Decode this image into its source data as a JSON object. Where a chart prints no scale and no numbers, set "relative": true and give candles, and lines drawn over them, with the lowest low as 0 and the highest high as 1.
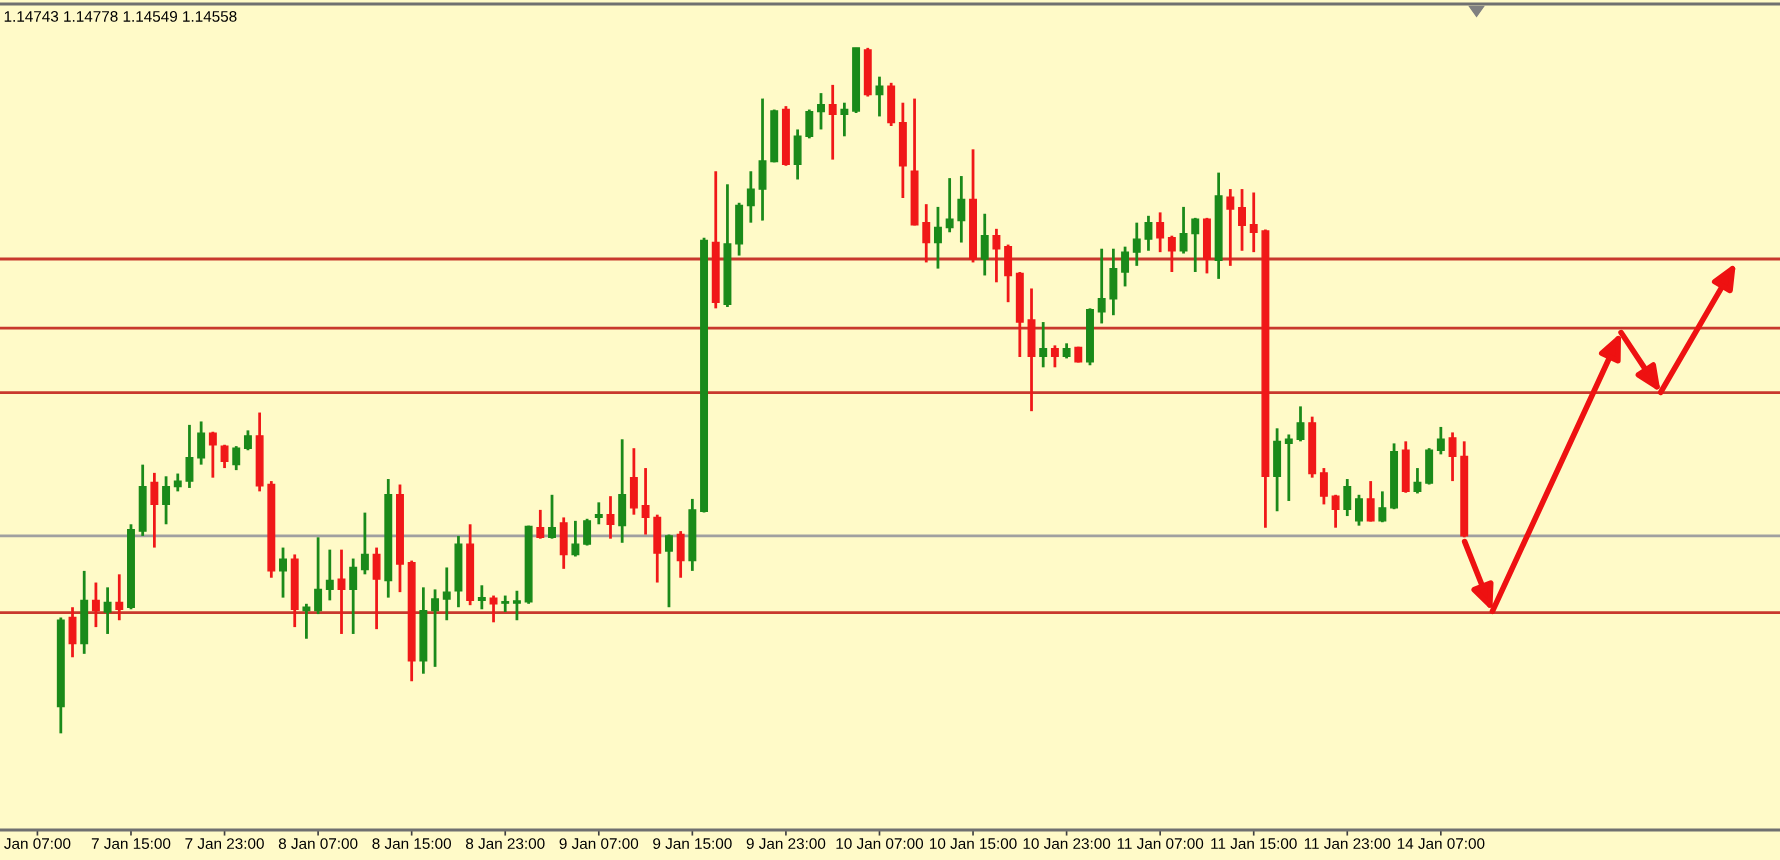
{
  "chart_data": {
    "type": "candlestick",
    "title": "1.14743 1.14778 1.14549 1.14558",
    "relative": true,
    "categories": [
      "Jan 07:00",
      null,
      null,
      null,
      null,
      null,
      null,
      null,
      "7 Jan 15:00",
      null,
      null,
      null,
      null,
      null,
      null,
      null,
      "7 Jan 23:00",
      null,
      null,
      null,
      null,
      null,
      null,
      null,
      "8 Jan 07:00",
      null,
      null,
      null,
      null,
      null,
      null,
      null,
      "8 Jan 15:00",
      null,
      null,
      null,
      null,
      null,
      null,
      null,
      "8 Jan 23:00",
      null,
      null,
      null,
      null,
      null,
      null,
      null,
      "9 Jan 07:00",
      null,
      null,
      null,
      null,
      null,
      null,
      null,
      "9 Jan 15:00",
      null,
      null,
      null,
      null,
      null,
      null,
      null,
      "9 Jan 23:00",
      null,
      null,
      null,
      null,
      null,
      null,
      null,
      "10 Jan 07:00",
      null,
      null,
      null,
      null,
      null,
      null,
      null,
      "10 Jan 15:00",
      null,
      null,
      null,
      null,
      null,
      null,
      null,
      "10 Jan 23:00",
      null,
      null,
      null,
      null,
      null,
      null,
      null,
      "11 Jan 07:00",
      null,
      null,
      null,
      null,
      null,
      null,
      null,
      "11 Jan 15:00",
      null,
      null,
      null,
      null,
      null,
      null,
      null,
      "11 Jan 23:00",
      null,
      null,
      null,
      null,
      null,
      null,
      null,
      "14 Jan 07:00",
      null,
      null
    ],
    "ohlc": [
      null,
      null,
      [
        0.039,
        0.169,
        0,
        0.165
      ],
      [
        0.169,
        0.184,
        0.111,
        0.131
      ],
      [
        0.131,
        0.237,
        0.116,
        0.194
      ],
      [
        0.194,
        0.22,
        0.155,
        0.179
      ],
      [
        0.177,
        0.213,
        0.145,
        0.191
      ],
      [
        0.191,
        0.232,
        0.165,
        0.181
      ],
      [
        0.184,
        0.305,
        0.181,
        0.297
      ],
      [
        0.295,
        0.392,
        0.288,
        0.36
      ],
      [
        0.366,
        0.38,
        0.271,
        0.334
      ],
      [
        0.334,
        0.375,
        0.305,
        0.36
      ],
      [
        0.36,
        0.379,
        0.353,
        0.368
      ],
      [
        0.368,
        0.45,
        0.358,
        0.402
      ],
      [
        0.402,
        0.455,
        0.392,
        0.438
      ],
      [
        0.438,
        0.44,
        0.373,
        0.421
      ],
      [
        0.419,
        0.421,
        0.387,
        0.397
      ],
      [
        0.392,
        0.419,
        0.384,
        0.416
      ],
      [
        0.416,
        0.442,
        0.413,
        0.434
      ],
      [
        0.434,
        0.468,
        0.353,
        0.361
      ],
      [
        0.363,
        0.368,
        0.227,
        0.237
      ],
      [
        0.237,
        0.271,
        0.198,
        0.254
      ],
      [
        0.254,
        0.261,
        0.155,
        0.181
      ],
      [
        0.179,
        0.189,
        0.138,
        0.184
      ],
      [
        0.179,
        0.286,
        0.174,
        0.21
      ],
      [
        0.21,
        0.268,
        0.194,
        0.223
      ],
      [
        0.225,
        0.268,
        0.145,
        0.21
      ],
      [
        0.21,
        0.255,
        0.145,
        0.242
      ],
      [
        0.239,
        0.322,
        0.232,
        0.261
      ],
      [
        0.261,
        0.271,
        0.152,
        0.225
      ],
      [
        0.223,
        0.371,
        0.198,
        0.348
      ],
      [
        0.348,
        0.363,
        0.206,
        0.247
      ],
      [
        0.249,
        0.252,
        0.076,
        0.106
      ],
      [
        0.106,
        0.213,
        0.087,
        0.179
      ],
      [
        0.179,
        0.21,
        0.097,
        0.196
      ],
      [
        0.196,
        0.242,
        0.165,
        0.206
      ],
      [
        0.208,
        0.288,
        0.184,
        0.276
      ],
      [
        0.276,
        0.305,
        0.187,
        0.194
      ],
      [
        0.194,
        0.216,
        0.181,
        0.198
      ],
      [
        0.197,
        0.201,
        0.162,
        0.189
      ],
      [
        0.19,
        0.201,
        0.177,
        0.192
      ],
      [
        0.19,
        0.208,
        0.165,
        0.193
      ],
      [
        0.192,
        0.303,
        0.189,
        0.302
      ],
      [
        0.3,
        0.326,
        0.284,
        0.286
      ],
      [
        0.286,
        0.348,
        0.284,
        0.3
      ],
      [
        0.307,
        0.315,
        0.24,
        0.261
      ],
      [
        0.261,
        0.31,
        0.258,
        0.276
      ],
      [
        0.276,
        0.313,
        0.274,
        0.31
      ],
      [
        0.315,
        0.337,
        0.305,
        0.319
      ],
      [
        0.319,
        0.346,
        0.284,
        0.305
      ],
      [
        0.303,
        0.429,
        0.278,
        0.348
      ],
      [
        0.373,
        0.416,
        0.319,
        0.329
      ],
      [
        0.332,
        0.387,
        0.29,
        0.315
      ],
      [
        0.315,
        0.319,
        0.22,
        0.263
      ],
      [
        0.266,
        0.29,
        0.184,
        0.288
      ],
      [
        0.29,
        0.295,
        0.227,
        0.252
      ],
      [
        0.252,
        0.342,
        0.237,
        0.326
      ],
      [
        0.324,
        0.723,
        0.322,
        0.719
      ],
      [
        0.716,
        0.82,
        0.62,
        0.629
      ],
      [
        0.626,
        0.801,
        0.622,
        0.714
      ],
      [
        0.714,
        0.774,
        0.697,
        0.77
      ],
      [
        0.77,
        0.82,
        0.745,
        0.794
      ],
      [
        0.794,
        0.926,
        0.748,
        0.835
      ],
      [
        0.834,
        0.91,
        0.833,
        0.908
      ],
      [
        0.91,
        0.915,
        0.828,
        0.83
      ],
      [
        0.83,
        0.881,
        0.808,
        0.871
      ],
      [
        0.871,
        0.91,
        0.868,
        0.907
      ],
      [
        0.907,
        0.934,
        0.881,
        0.917
      ],
      [
        0.917,
        0.946,
        0.837,
        0.903
      ],
      [
        0.903,
        0.92,
        0.871,
        0.91
      ],
      [
        0.908,
        1,
        0.905,
        1
      ],
      [
        0.997,
        1,
        0.929,
        0.932
      ],
      [
        0.932,
        0.958,
        0.9,
        0.944
      ],
      [
        0.944,
        0.949,
        0.886,
        0.891
      ],
      [
        0.891,
        0.92,
        0.781,
        0.828
      ],
      [
        0.82,
        0.926,
        0.741,
        0.742
      ],
      [
        0.745,
        0.772,
        0.687,
        0.716
      ],
      [
        0.716,
        0.768,
        0.678,
        0.738
      ],
      [
        0.738,
        0.81,
        0.731,
        0.75
      ],
      [
        0.748,
        0.813,
        0.716,
        0.779
      ],
      [
        0.779,
        0.852,
        0.687,
        0.692
      ],
      [
        0.692,
        0.758,
        0.668,
        0.726
      ],
      [
        0.726,
        0.736,
        0.658,
        0.707
      ],
      [
        0.71,
        0.713,
        0.629,
        0.668
      ],
      [
        0.671,
        0.673,
        0.549,
        0.6
      ],
      [
        0.603,
        0.649,
        0.47,
        0.55
      ],
      [
        0.55,
        0.6,
        0.534,
        0.561
      ],
      [
        0.561,
        0.566,
        0.534,
        0.55
      ],
      [
        0.55,
        0.569,
        0.547,
        0.561
      ],
      [
        0.563,
        0.564,
        0.541,
        0.542
      ],
      [
        0.542,
        0.62,
        0.537,
        0.618
      ],
      [
        0.615,
        0.707,
        0.598,
        0.634
      ],
      [
        0.634,
        0.707,
        0.61,
        0.678
      ],
      [
        0.673,
        0.71,
        0.652,
        0.702
      ],
      [
        0.702,
        0.745,
        0.682,
        0.721
      ],
      [
        0.721,
        0.755,
        0.704,
        0.745
      ],
      [
        0.745,
        0.76,
        0.702,
        0.723
      ],
      [
        0.723,
        0.726,
        0.673,
        0.704
      ],
      [
        0.704,
        0.768,
        0.7,
        0.729
      ],
      [
        0.729,
        0.752,
        0.673,
        0.75
      ],
      [
        0.75,
        0.752,
        0.671,
        0.692
      ],
      [
        0.69,
        0.818,
        0.663,
        0.784
      ],
      [
        0.782,
        0.794,
        0.682,
        0.765
      ],
      [
        0.767,
        0.794,
        0.704,
        0.741
      ],
      [
        0.742,
        0.789,
        0.702,
        0.731
      ],
      [
        0.733,
        0.735,
        0.3,
        0.375
      ],
      [
        0.375,
        0.445,
        0.324,
        0.426
      ],
      [
        0.423,
        0.436,
        0.339,
        0.429
      ],
      [
        0.429,
        0.477,
        0.426,
        0.453
      ],
      [
        0.453,
        0.462,
        0.373,
        0.379
      ],
      [
        0.38,
        0.387,
        0.334,
        0.346
      ],
      [
        0.346,
        0.348,
        0.3,
        0.327
      ],
      [
        0.327,
        0.371,
        0.317,
        0.36
      ],
      [
        0.31,
        0.348,
        0.303,
        0.342
      ],
      [
        0.342,
        0.368,
        0.309,
        0.31
      ],
      [
        0.31,
        0.353,
        0.308,
        0.329
      ],
      [
        0.329,
        0.423,
        0.327,
        0.411
      ],
      [
        0.413,
        0.426,
        0.351,
        0.353
      ],
      [
        0.353,
        0.387,
        0.35,
        0.366
      ],
      [
        0.365,
        0.416,
        0.363,
        0.413
      ],
      [
        0.413,
        0.447,
        0.407,
        0.429
      ],
      [
        0.431,
        0.439,
        0.368,
        0.404
      ],
      [
        0.404,
        0.426,
        0.286,
        0.288
      ]
    ],
    "colors": [
      null,
      null,
      "#1a8a1a",
      "#f01818",
      "#1a8a1a",
      "#f01818",
      "#1a8a1a",
      "#f01818",
      "#1a8a1a",
      "#1a8a1a",
      "#f01818",
      "#1a8a1a",
      "#1a8a1a",
      "#1a8a1a",
      "#1a8a1a",
      "#f01818",
      "#f01818",
      "#1a8a1a",
      "#1a8a1a",
      "#f01818",
      "#f01818",
      "#1a8a1a",
      "#f01818",
      "#1a8a1a",
      "#1a8a1a",
      "#1a8a1a",
      "#f01818",
      "#1a8a1a",
      "#1a8a1a",
      "#f01818",
      "#1a8a1a",
      "#f01818",
      "#f01818",
      "#1a8a1a",
      "#1a8a1a",
      "#1a8a1a",
      "#1a8a1a",
      "#f01818",
      "#1a8a1a",
      "#f01818",
      "#1a8a1a",
      "#1a8a1a",
      "#1a8a1a",
      "#f01818",
      "#1a8a1a",
      "#f01818",
      "#1a8a1a",
      "#1a8a1a",
      "#1a8a1a",
      "#f01818",
      "#1a8a1a",
      "#f01818",
      "#f01818",
      "#f01818",
      "#1a8a1a",
      "#f01818",
      "#1a8a1a",
      "#1a8a1a",
      "#f01818",
      "#1a8a1a",
      "#1a8a1a",
      "#1a8a1a",
      "#1a8a1a",
      "#1a8a1a",
      "#f01818",
      "#1a8a1a",
      "#1a8a1a",
      "#1a8a1a",
      "#f01818",
      "#1a8a1a",
      "#1a8a1a",
      "#f01818",
      "#1a8a1a",
      "#f01818",
      "#f01818",
      "#f01818",
      "#f01818",
      "#1a8a1a",
      "#1a8a1a",
      "#1a8a1a",
      "#f01818",
      "#1a8a1a",
      "#f01818",
      "#f01818",
      "#f01818",
      "#f01818",
      "#1a8a1a",
      "#f01818",
      "#1a8a1a",
      "#f01818",
      "#1a8a1a",
      "#1a8a1a",
      "#1a8a1a",
      "#1a8a1a",
      "#1a8a1a",
      "#1a8a1a",
      "#f01818",
      "#f01818",
      "#1a8a1a",
      "#1a8a1a",
      "#f01818",
      "#1a8a1a",
      "#f01818",
      "#f01818",
      "#f01818",
      "#f01818",
      "#1a8a1a",
      "#1a8a1a",
      "#1a8a1a",
      "#f01818",
      "#f01818",
      "#f01818",
      "#1a8a1a",
      "#1a8a1a",
      "#f01818",
      "#1a8a1a",
      "#1a8a1a",
      "#f01818",
      "#1a8a1a",
      "#1a8a1a",
      "#1a8a1a",
      "#f01818",
      "#f01818"
    ],
    "ref_lines": [
      {
        "axis": "y",
        "value": 0.692,
        "color": "#c8382d"
      },
      {
        "axis": "y",
        "value": 0.591,
        "color": "#c8382d"
      },
      {
        "axis": "y",
        "value": 0.497,
        "color": "#c8382d"
      },
      {
        "axis": "y",
        "value": 0.288,
        "color": "#a0a0a0"
      },
      {
        "axis": "y",
        "value": 0.176,
        "color": "#c8382d"
      }
    ]
  }
}
